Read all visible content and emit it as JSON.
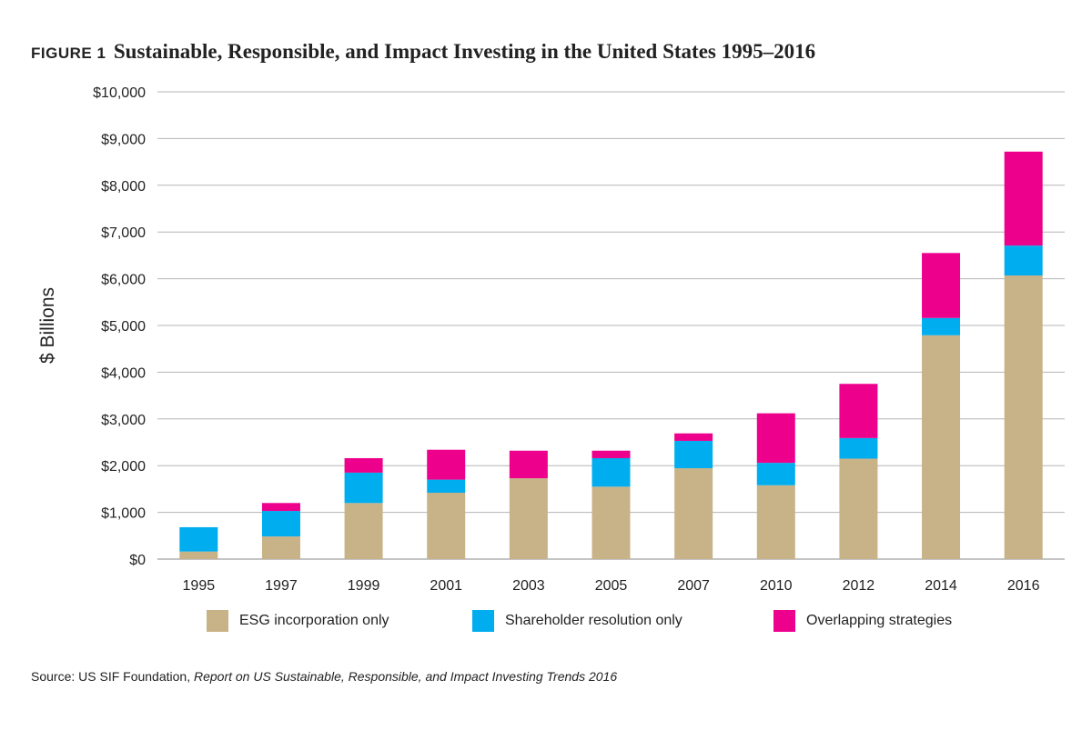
{
  "figure_label": "FIGURE 1",
  "figure_title": "Sustainable, Responsible, and Impact Investing in the United States 1995–2016",
  "source_prefix": "Source: US SIF Foundation,",
  "source_title": "Report on US Sustainable, Responsible, and Impact Investing Trends 2016",
  "chart_data": {
    "type": "bar",
    "stacked": true,
    "title": "Sustainable, Responsible, and Impact Investing in the United States 1995–2016",
    "ylabel": "$ Billions",
    "xlabel": "",
    "ylim": [
      0,
      10000
    ],
    "yticks": [
      0,
      1000,
      2000,
      3000,
      4000,
      5000,
      6000,
      7000,
      8000,
      9000,
      10000
    ],
    "ytick_labels": [
      "$0",
      "$1,000",
      "$2,000",
      "$3,000",
      "$4,000",
      "$5,000",
      "$6,000",
      "$7,000",
      "$8,000",
      "$9,000",
      "$10,000"
    ],
    "grid": "horizontal",
    "legend_position": "bottom",
    "categories": [
      "1995",
      "1997",
      "1999",
      "2001",
      "2003",
      "2005",
      "2007",
      "2010",
      "2012",
      "2014",
      "2016"
    ],
    "series": [
      {
        "name": "ESG incorporation only",
        "color": "#c8b287",
        "values": [
          162,
          485,
          1200,
          1420,
          1730,
          1550,
          1945,
          1580,
          2150,
          4790,
          6070
        ]
      },
      {
        "name": "Shareholder resolution only",
        "color": "#00adef",
        "values": [
          520,
          545,
          650,
          280,
          0,
          610,
          585,
          480,
          440,
          370,
          640
        ]
      },
      {
        "name": "Overlapping strategies",
        "color": "#ec008c",
        "values": [
          0,
          170,
          310,
          640,
          590,
          160,
          160,
          1060,
          1160,
          1390,
          2010
        ]
      }
    ]
  }
}
